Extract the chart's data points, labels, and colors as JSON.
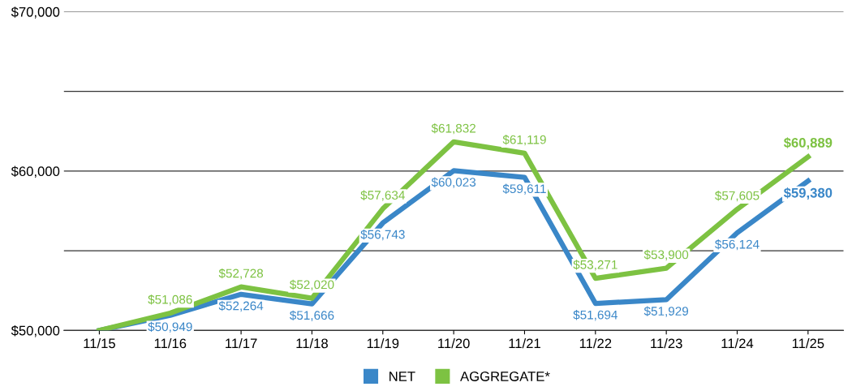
{
  "chart_data": {
    "type": "line",
    "categories": [
      "11/15",
      "11/16",
      "11/17",
      "11/18",
      "11/19",
      "11/20",
      "11/21",
      "11/22",
      "11/23",
      "11/24",
      "11/25"
    ],
    "series": [
      {
        "name": "NET",
        "color": "#3a87c8",
        "values": [
          50000,
          50949,
          52264,
          51666,
          56743,
          60023,
          59611,
          51694,
          51929,
          56124,
          59380
        ],
        "value_labels": [
          null,
          "$50,949",
          "$52,264",
          "$51,666",
          "$56,743",
          "$60,023",
          "$59,611",
          "$51,694",
          "$51,929",
          "$56,124",
          "$59,380"
        ]
      },
      {
        "name": "AGGREGATE*",
        "color": "#7dc242",
        "values": [
          50000,
          51086,
          52728,
          52020,
          57634,
          61832,
          61119,
          53271,
          53900,
          57605,
          60889
        ],
        "value_labels": [
          null,
          "$51,086",
          "$52,728",
          "$52,020",
          "$57,634",
          "$61,832",
          "$61,119",
          "$53,271",
          "$53,900",
          "$57,605",
          "$60,889"
        ]
      }
    ],
    "ylim": [
      50000,
      70000
    ],
    "yticks": [
      {
        "value": 50000,
        "label": "$50,000"
      },
      {
        "value": 55000,
        "label": null
      },
      {
        "value": 60000,
        "label": "$60,000"
      },
      {
        "value": 65000,
        "label": null
      },
      {
        "value": 70000,
        "label": "$70,000"
      }
    ],
    "grid": "y",
    "legend": "bottom",
    "marker": "none",
    "line_style": "solid"
  }
}
